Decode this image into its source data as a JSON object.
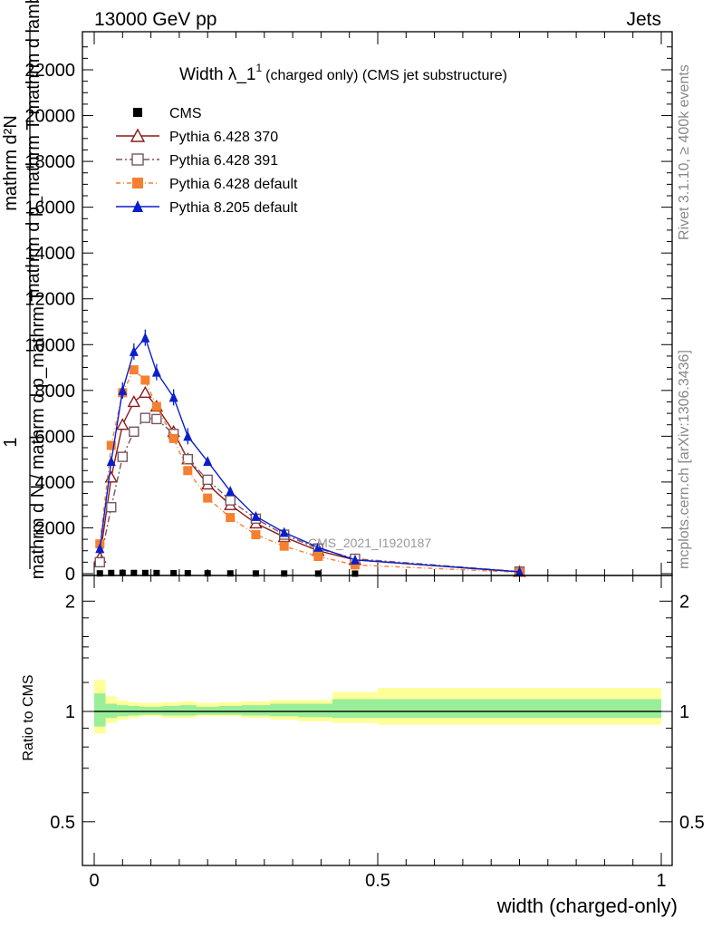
{
  "header": {
    "left": "13000 GeV pp",
    "right": "Jets"
  },
  "side": {
    "rivet": "Rivet 3.1.10, ≥ 400k events",
    "mcplots": "mcplots.cern.ch [arXiv:1306.3436]"
  },
  "colors": {
    "cms": "#000000",
    "p370": "#8b1a1a",
    "p391": "#7a5560",
    "p6def": "#f58030",
    "p8def": "#0a1ecc",
    "band_outer": "#ffff99",
    "band_inner": "#99ee99"
  },
  "chart_data": [
    {
      "type": "line",
      "title_main": "Width λ_1",
      "title_sup": "1",
      "title_sub": "(charged only) (CMS jet substructure)",
      "watermark": "CMS_2021_I1920187",
      "ylabel_top": "1",
      "ylabel_num1": "mathrm d²N",
      "ylabel_num2": "mathrm d p_mathrm T mathrm d lambda",
      "ylabel_den": "mathrm d N / mathrm d p_mathrm T",
      "xlim": [
        0,
        1
      ],
      "ylim": [
        0,
        23500
      ],
      "yticks": [
        0,
        2000,
        4000,
        6000,
        8000,
        10000,
        12000,
        14000,
        16000,
        18000,
        20000,
        22000
      ],
      "ytick_labels": [
        "0",
        "2000",
        "4000",
        "6000",
        "8000",
        "10000",
        "12000",
        "14000",
        "16000",
        "18000",
        "20000",
        "22000"
      ],
      "legend": [
        "CMS",
        "Pythia 6.428 370",
        "Pythia 6.428 391",
        "Pythia 6.428 default",
        "Pythia 8.205 default"
      ],
      "series": [
        {
          "name": "CMS",
          "color_key": "cms",
          "marker": "square-filled",
          "points": [
            [
              0.01,
              12
            ],
            [
              0.03,
              28
            ],
            [
              0.05,
              32
            ],
            [
              0.07,
              30
            ],
            [
              0.09,
              28
            ],
            [
              0.11,
              26
            ],
            [
              0.14,
              22
            ],
            [
              0.165,
              18
            ],
            [
              0.2,
              14
            ],
            [
              0.24,
              11
            ],
            [
              0.285,
              8
            ],
            [
              0.335,
              6
            ],
            [
              0.395,
              4
            ],
            [
              0.46,
              2
            ]
          ]
        },
        {
          "name": "Pythia 6.428 370",
          "color_key": "p370",
          "marker": "triangle-open",
          "points": [
            [
              0.01,
              700
            ],
            [
              0.03,
              4200
            ],
            [
              0.05,
              6500
            ],
            [
              0.07,
              7500
            ],
            [
              0.09,
              7900
            ],
            [
              0.11,
              7300
            ],
            [
              0.14,
              6200
            ],
            [
              0.165,
              5000
            ],
            [
              0.2,
              3900
            ],
            [
              0.24,
              3000
            ],
            [
              0.285,
              2200
            ],
            [
              0.335,
              1600
            ],
            [
              0.395,
              1000
            ],
            [
              0.46,
              600
            ],
            [
              0.75,
              80
            ]
          ]
        },
        {
          "name": "Pythia 6.428 391",
          "color_key": "p391",
          "marker": "square-open",
          "points": [
            [
              0.01,
              500
            ],
            [
              0.03,
              2900
            ],
            [
              0.05,
              5100
            ],
            [
              0.07,
              6200
            ],
            [
              0.09,
              6800
            ],
            [
              0.11,
              6750
            ],
            [
              0.14,
              6100
            ],
            [
              0.165,
              5000
            ],
            [
              0.2,
              4100
            ],
            [
              0.24,
              3200
            ],
            [
              0.285,
              2400
            ],
            [
              0.335,
              1700
            ],
            [
              0.395,
              1100
            ],
            [
              0.46,
              650
            ],
            [
              0.75,
              90
            ]
          ]
        },
        {
          "name": "Pythia 6.428 default",
          "color_key": "p6def",
          "marker": "square-filled",
          "points": [
            [
              0.01,
              1300
            ],
            [
              0.03,
              5600
            ],
            [
              0.05,
              7900
            ],
            [
              0.07,
              8900
            ],
            [
              0.09,
              8450
            ],
            [
              0.11,
              7300
            ],
            [
              0.14,
              5900
            ],
            [
              0.165,
              4500
            ],
            [
              0.2,
              3300
            ],
            [
              0.24,
              2450
            ],
            [
              0.285,
              1700
            ],
            [
              0.335,
              1200
            ],
            [
              0.395,
              750
            ],
            [
              0.46,
              380
            ],
            [
              0.75,
              60
            ]
          ]
        },
        {
          "name": "Pythia 8.205 default",
          "color_key": "p8def",
          "marker": "triangle-filled",
          "points": [
            [
              0.01,
              1100
            ],
            [
              0.03,
              4900
            ],
            [
              0.05,
              8000
            ],
            [
              0.07,
              9700
            ],
            [
              0.09,
              10300
            ],
            [
              0.11,
              8800
            ],
            [
              0.14,
              7700
            ],
            [
              0.165,
              6000
            ],
            [
              0.2,
              4900
            ],
            [
              0.24,
              3600
            ],
            [
              0.285,
              2500
            ],
            [
              0.335,
              1800
            ],
            [
              0.395,
              1150
            ],
            [
              0.46,
              600
            ],
            [
              0.75,
              80
            ]
          ]
        }
      ]
    },
    {
      "type": "area",
      "ylabel": "Ratio to CMS",
      "xlabel": "width (charged-only)",
      "xlim": [
        0,
        1
      ],
      "ylim": [
        0.38,
        2.35
      ],
      "yscale": "log",
      "yticks": [
        0.5,
        1,
        2
      ],
      "ytick_labels": [
        "0.5",
        "1",
        "2"
      ],
      "xticks": [
        0,
        0.5,
        1
      ],
      "xtick_labels": [
        "0",
        "0.5",
        "1"
      ],
      "bins": [
        0,
        0.02,
        0.04,
        0.06,
        0.08,
        0.1,
        0.12,
        0.15,
        0.18,
        0.22,
        0.26,
        0.31,
        0.36,
        0.42,
        0.5,
        1.0
      ],
      "outer_lo": [
        0.87,
        0.93,
        0.95,
        0.96,
        0.97,
        0.97,
        0.96,
        0.96,
        0.97,
        0.97,
        0.96,
        0.95,
        0.94,
        0.93,
        0.92
      ],
      "outer_hi": [
        1.22,
        1.1,
        1.07,
        1.06,
        1.055,
        1.055,
        1.06,
        1.065,
        1.055,
        1.06,
        1.065,
        1.075,
        1.075,
        1.13,
        1.16
      ],
      "inner_lo": [
        0.91,
        0.96,
        0.97,
        0.975,
        0.98,
        0.98,
        0.975,
        0.975,
        0.98,
        0.98,
        0.975,
        0.97,
        0.965,
        0.96,
        0.96
      ],
      "inner_hi": [
        1.12,
        1.05,
        1.04,
        1.035,
        1.03,
        1.03,
        1.035,
        1.04,
        1.03,
        1.035,
        1.04,
        1.05,
        1.05,
        1.08,
        1.08
      ]
    }
  ]
}
